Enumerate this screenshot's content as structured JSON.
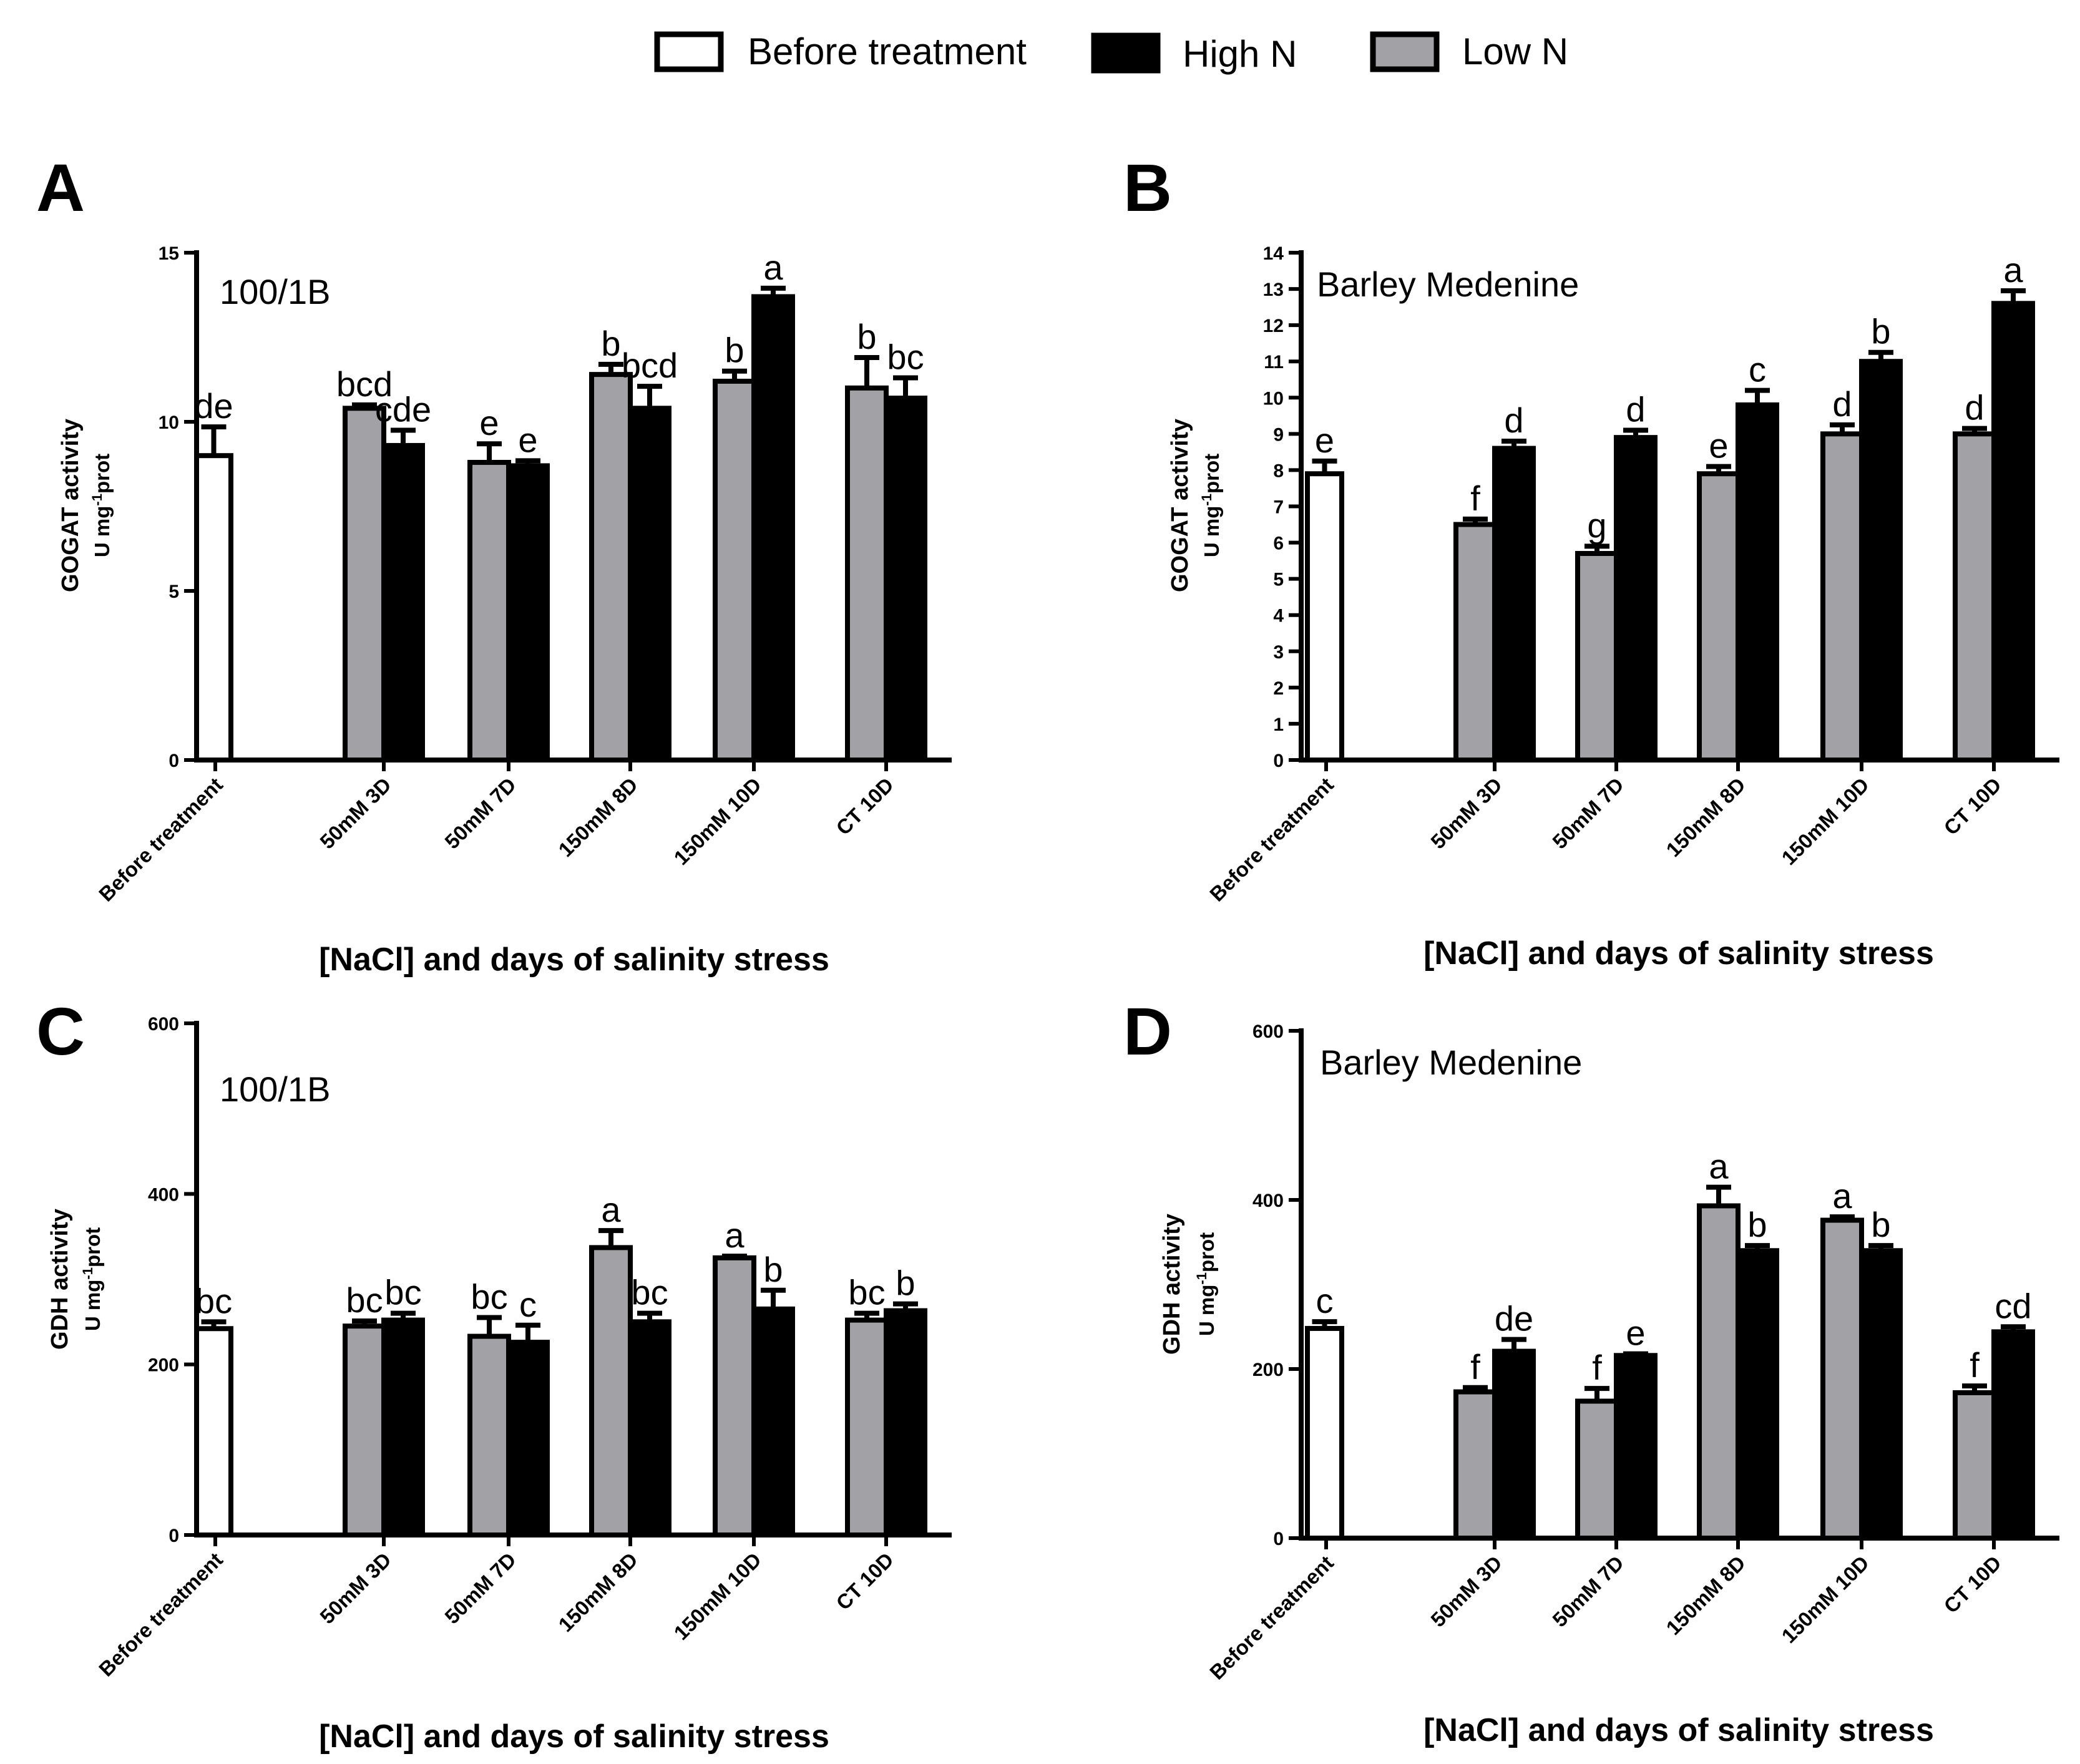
{
  "legend": {
    "items": [
      {
        "label": "Before treatment",
        "color": "#ffffff"
      },
      {
        "label": "High N",
        "color": "#000000"
      },
      {
        "label": "Low N",
        "color": "#a1a1a6"
      }
    ]
  },
  "chart_data": [
    {
      "panel": "A",
      "type": "bar",
      "title": "100/1B",
      "xlabel": "[NaCl] and days of salinity stress",
      "ylabel": "GOGAT activity",
      "yunit": "U mg-1prot",
      "ylim": [
        0,
        15
      ],
      "yticks": [
        0,
        5,
        10,
        15
      ],
      "categories": [
        "Before treatment",
        "50mM 3D",
        "50mM 7D",
        "150mM 8D",
        "150mM 10D",
        "CT 10D"
      ],
      "series": [
        {
          "name": "Before treatment",
          "values": [
            9.0,
            null,
            null,
            null,
            null,
            null
          ],
          "errors": [
            0.85,
            null,
            null,
            null,
            null,
            null
          ],
          "labels": [
            "de",
            null,
            null,
            null,
            null,
            null
          ]
        },
        {
          "name": "Low N",
          "values": [
            null,
            10.4,
            8.8,
            11.4,
            11.2,
            11.0
          ],
          "errors": [
            null,
            0.1,
            0.55,
            0.3,
            0.3,
            0.9
          ],
          "labels": [
            null,
            "bcd",
            "e",
            "b",
            "b",
            "b"
          ]
        },
        {
          "name": "High N",
          "values": [
            null,
            9.3,
            8.7,
            10.4,
            13.7,
            10.7
          ],
          "errors": [
            null,
            0.45,
            0.15,
            0.65,
            0.25,
            0.6
          ],
          "labels": [
            null,
            "cde",
            "e",
            "bcd",
            "a",
            "bc"
          ]
        }
      ]
    },
    {
      "panel": "B",
      "type": "bar",
      "title": "Barley Medenine",
      "xlabel": "[NaCl] and days of salinity stress",
      "ylabel": "GOGAT activity",
      "yunit": "U mg-1prot",
      "ylim": [
        0,
        14
      ],
      "yticks": [
        0,
        1,
        2,
        3,
        4,
        5,
        6,
        7,
        8,
        9,
        10,
        11,
        12,
        13,
        14
      ],
      "categories": [
        "Before treatment",
        "50mM 3D",
        "50mM 7D",
        "150mM 8D",
        "150mM 10D",
        "CT 10D"
      ],
      "series": [
        {
          "name": "Before treatment",
          "values": [
            7.9,
            null,
            null,
            null,
            null,
            null
          ],
          "errors": [
            0.35,
            null,
            null,
            null,
            null,
            null
          ],
          "labels": [
            "e",
            null,
            null,
            null,
            null,
            null
          ]
        },
        {
          "name": "Low N",
          "values": [
            null,
            6.5,
            5.7,
            7.9,
            9.0,
            9.0
          ],
          "errors": [
            null,
            0.15,
            0.2,
            0.2,
            0.25,
            0.15
          ],
          "labels": [
            null,
            "f",
            "g",
            "e",
            "d",
            "d"
          ]
        },
        {
          "name": "High N",
          "values": [
            null,
            8.6,
            8.9,
            9.8,
            11.0,
            12.6
          ],
          "errors": [
            null,
            0.2,
            0.2,
            0.4,
            0.25,
            0.35
          ],
          "labels": [
            null,
            "d",
            "d",
            "c",
            "b",
            "a"
          ]
        }
      ]
    },
    {
      "panel": "C",
      "type": "bar",
      "title": "100/1B",
      "xlabel": "[NaCl] and days of salinity stress",
      "ylabel": "GDH activity",
      "yunit": "U mg-1prot",
      "ylim": [
        0,
        600
      ],
      "yticks": [
        0,
        200,
        400,
        600
      ],
      "categories": [
        "Before treatment",
        "50mM 3D",
        "50mM 7D",
        "150mM 8D",
        "150mM 10D",
        "CT 10D"
      ],
      "series": [
        {
          "name": "Before treatment",
          "values": [
            242,
            null,
            null,
            null,
            null,
            null
          ],
          "errors": [
            8,
            null,
            null,
            null,
            null,
            null
          ],
          "labels": [
            "bc",
            null,
            null,
            null,
            null,
            null
          ]
        },
        {
          "name": "Low N",
          "values": [
            null,
            245,
            233,
            337,
            325,
            252
          ],
          "errors": [
            null,
            6,
            22,
            20,
            2,
            8
          ],
          "labels": [
            null,
            "bc",
            "bc",
            "a",
            "a",
            "bc"
          ]
        },
        {
          "name": "High N",
          "values": [
            null,
            252,
            226,
            250,
            265,
            263
          ],
          "errors": [
            null,
            8,
            20,
            10,
            22,
            8
          ],
          "labels": [
            null,
            "bc",
            "c",
            "bc",
            "b",
            "b"
          ]
        }
      ]
    },
    {
      "panel": "D",
      "type": "bar",
      "title": "Barley Medenine",
      "xlabel": "[NaCl] and days of salinity stress",
      "ylabel": "GDH activity",
      "yunit": "U mg-1prot",
      "ylim": [
        0,
        600
      ],
      "yticks": [
        0,
        200,
        400,
        600
      ],
      "categories": [
        "Before treatment",
        "50mM 3D",
        "50mM 7D",
        "150mM 8D",
        "150mM 10D",
        "CT 10D"
      ],
      "series": [
        {
          "name": "Before treatment",
          "values": [
            248,
            null,
            null,
            null,
            null,
            null
          ],
          "errors": [
            8,
            null,
            null,
            null,
            null,
            null
          ],
          "labels": [
            "c",
            null,
            null,
            null,
            null,
            null
          ]
        },
        {
          "name": "Low N",
          "values": [
            null,
            173,
            162,
            393,
            376,
            172
          ],
          "errors": [
            null,
            5,
            15,
            22,
            4,
            8
          ],
          "labels": [
            null,
            "f",
            "f",
            "a",
            "a",
            "f"
          ]
        },
        {
          "name": "High N",
          "values": [
            null,
            221,
            216,
            340,
            340,
            244
          ],
          "errors": [
            null,
            14,
            2,
            6,
            6,
            6
          ],
          "labels": [
            null,
            "de",
            "e",
            "b",
            "b",
            "cd"
          ]
        }
      ]
    }
  ]
}
